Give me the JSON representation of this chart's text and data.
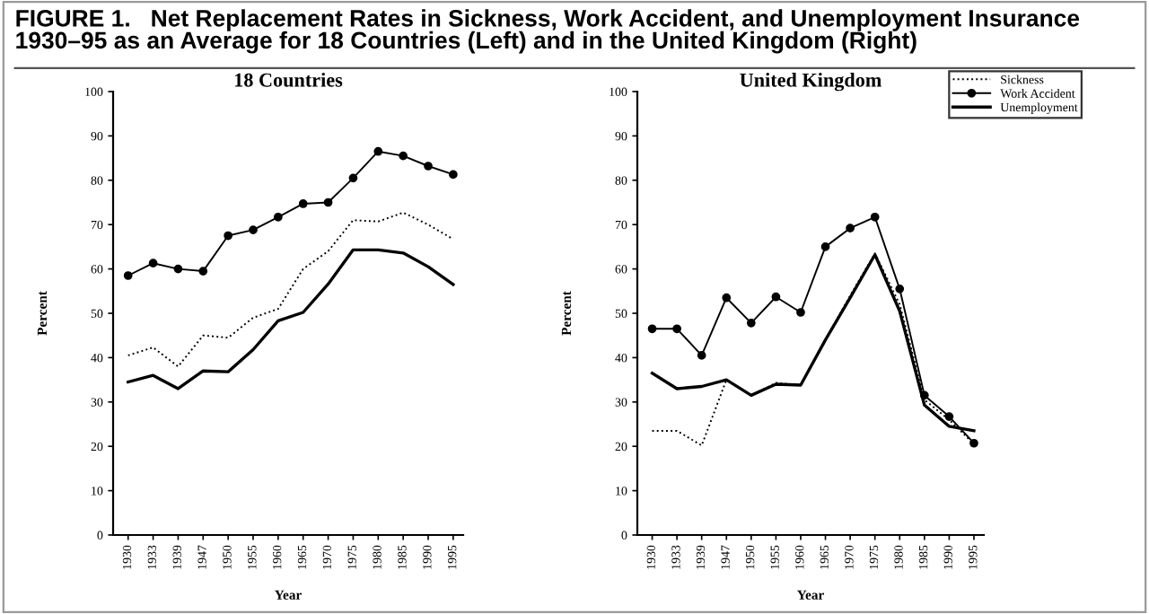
{
  "chart_data": [
    {
      "type": "line",
      "title": "18 Countries",
      "xlabel": "Year",
      "ylabel": "Percent",
      "annotations": [
        "FIGURE 1.   Net Replacement Rates in Sickness, Work Accident, and Unemployment Insurance\n1930–95 as an Average for 18 Countries (Left) and in the United Kingdom (Right)"
      ],
      "categories": [
        "1930",
        "1933",
        "1939",
        "1947",
        "1950",
        "1955",
        "1960",
        "1965",
        "1970",
        "1975",
        "1980",
        "1985",
        "1990",
        "1995"
      ],
      "ylim": [
        0,
        100
      ],
      "yticks": [
        0,
        10,
        20,
        30,
        40,
        50,
        60,
        70,
        80,
        90,
        100
      ],
      "grid": false,
      "legend": false,
      "series": [
        {
          "color": "#000000",
          "line_style": "dotted",
          "marker": "none",
          "values": [
            40.5,
            42.3,
            38,
            45,
            44.5,
            49,
            51,
            60,
            64,
            71,
            70.7,
            72.7,
            70,
            66.7
          ]
        },
        {
          "color": "#000000",
          "line_style": "solid",
          "marker": "circle",
          "values": [
            58.5,
            61.3,
            60,
            59.5,
            67.5,
            68.8,
            71.7,
            74.7,
            75,
            80.5,
            86.5,
            85.5,
            83.2,
            81.3
          ]
        },
        {
          "color": "#000000",
          "line_style": "solid",
          "marker": "none",
          "values": [
            34.5,
            36,
            33,
            37,
            36.8,
            41.8,
            48.3,
            50.2,
            56.6,
            64.3,
            64.3,
            63.6,
            60.5,
            56.5
          ]
        }
      ]
    },
    {
      "type": "line",
      "title": "United Kingdom",
      "xlabel": "Year",
      "ylabel": "Percent",
      "categories": [
        "1930",
        "1933",
        "1939",
        "1947",
        "1950",
        "1955",
        "1960",
        "1965",
        "1970",
        "1975",
        "1980",
        "1985",
        "1990",
        "1995"
      ],
      "ylim": [
        0,
        100
      ],
      "yticks": [
        0,
        10,
        20,
        30,
        40,
        50,
        60,
        70,
        80,
        90,
        100
      ],
      "grid": false,
      "legend": "top right",
      "series": [
        {
          "name": "Sickness",
          "color": "#000000",
          "line_style": "dotted",
          "marker": "none",
          "values": [
            23.5,
            23.5,
            20.2,
            35,
            31.5,
            34.3,
            33.8,
            44,
            54,
            63.5,
            52,
            30.5,
            26,
            20.5
          ]
        },
        {
          "name": "Work Accident",
          "color": "#000000",
          "line_style": "solid",
          "marker": "circle",
          "values": [
            46.5,
            46.5,
            40.5,
            53.5,
            47.8,
            53.7,
            50.2,
            65,
            69.2,
            71.7,
            55.5,
            31.5,
            26.7,
            20.7
          ]
        },
        {
          "name": "Unemployment",
          "color": "#000000",
          "line_style": "solid",
          "marker": "none",
          "values": [
            36.5,
            33,
            33.5,
            35,
            31.5,
            34,
            33.8,
            44,
            53.5,
            63.2,
            50.5,
            29.3,
            24.5,
            23.5
          ]
        }
      ]
    }
  ]
}
